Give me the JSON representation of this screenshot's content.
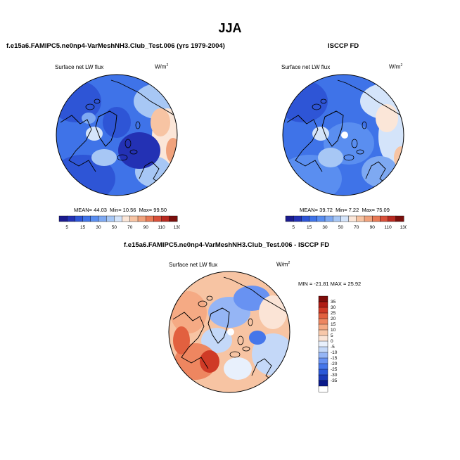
{
  "page": {
    "title": "JJA",
    "left_subtitle": "f.e15a6.FAMIPC5.ne0np4-VarMeshNH3.Club_Test.006 (yrs 1979-2004)",
    "right_subtitle": "ISCCP FD",
    "diff_subtitle": "f.e15a6.FAMIPC5.ne0np4-VarMeshNH3.Club_Test.006 - ISCCP FD"
  },
  "panels": {
    "model": {
      "label": "Surface net LW flux",
      "unit": "W/m",
      "unit_sup": "2",
      "mean_label": "MEAN=",
      "mean": "44.03",
      "min_label": "Min=",
      "min": "10.56",
      "max_label": "Max=",
      "max": "99.50"
    },
    "obs": {
      "label": "Surface net LW flux",
      "unit": "W/m",
      "unit_sup": "2",
      "mean_label": "MEAN=",
      "mean": "39.72",
      "min_label": "Min=",
      "min": "7.22",
      "max_label": "Max=",
      "max": "75.09"
    },
    "diff": {
      "label": "Surface net LW flux",
      "unit": "W/m",
      "unit_sup": "2",
      "minmax": "MIN = -21.81  MAX =  25.92"
    }
  },
  "colors": {
    "abs_bar": [
      "#1b1b8e",
      "#2331b4",
      "#2e55d6",
      "#3f73e8",
      "#5a8ef0",
      "#7ea9f2",
      "#a7c7f5",
      "#d4e4fa",
      "#fbe6d8",
      "#f7c4a3",
      "#f0a27c",
      "#e87a56",
      "#d8503a",
      "#b82a21",
      "#7a0f0c"
    ],
    "diff_bar": [
      "#ffffff",
      "#0a1a8a",
      "#1a3ab8",
      "#2a58d8",
      "#4576ea",
      "#6892f2",
      "#95b5f5",
      "#c4d8f8",
      "#e8f0fc",
      "#fbe4d6",
      "#f8c8aa",
      "#f5aa84",
      "#ee8660",
      "#e2603f",
      "#cf3a26",
      "#b01c14",
      "#7e0c0a"
    ]
  },
  "chart_data": [
    {
      "type": "heatmap",
      "title": "Surface net LW flux",
      "projection": "north polar stereographic",
      "colorbar_ticks": [
        "5",
        "15",
        "30",
        "50",
        "70",
        "90",
        "110",
        "130"
      ],
      "stats": {
        "mean": 44.03,
        "min": 10.56,
        "max": 99.5
      }
    },
    {
      "type": "heatmap",
      "title": "Surface net LW flux",
      "projection": "north polar stereographic",
      "colorbar_ticks": [
        "5",
        "15",
        "30",
        "50",
        "70",
        "90",
        "110",
        "130"
      ],
      "stats": {
        "mean": 39.72,
        "min": 7.22,
        "max": 75.09
      }
    },
    {
      "type": "heatmap",
      "title": "Surface net LW flux",
      "projection": "north polar stereographic",
      "colorbar_ticks": [
        "35",
        "30",
        "25",
        "20",
        "15",
        "10",
        "5",
        "0",
        "-5",
        "-10",
        "-15",
        "-20",
        "-25",
        "-30",
        "-35"
      ],
      "stats": {
        "min": -21.81,
        "max": 25.92
      }
    }
  ]
}
